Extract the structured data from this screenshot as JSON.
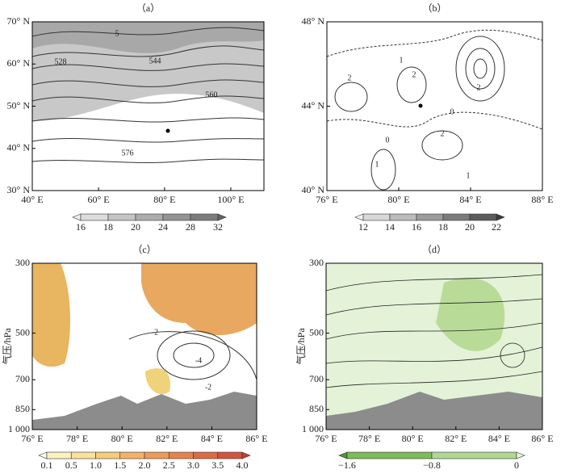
{
  "panels": [
    {
      "label": "（a）",
      "xticks": [
        "40° E",
        "60° E",
        "80° E",
        "100° E"
      ],
      "yticks": [
        "70° N",
        "60° N",
        "50° N",
        "40° N",
        "30° N"
      ],
      "colorbar": [
        "16",
        "18",
        "20",
        "24",
        "28",
        "32"
      ],
      "contour_labels": [
        "5",
        "528",
        "544",
        "560",
        "576"
      ]
    },
    {
      "label": "（b）",
      "xticks": [
        "76° E",
        "80° E",
        "84° E",
        "88° E"
      ],
      "yticks": [
        "48° N",
        "44° N",
        "40° N"
      ],
      "colorbar": [
        "12",
        "14",
        "16",
        "18",
        "20",
        "22"
      ],
      "contour_labels": [
        "1",
        "2",
        "2",
        "2",
        "0",
        "2",
        "0",
        "1",
        "1"
      ]
    },
    {
      "label": "（c）",
      "ylabel": "气压/hPa",
      "xticks": [
        "76° E",
        "78° E",
        "80° E",
        "82° E",
        "84° E",
        "86° E"
      ],
      "yticks": [
        "300",
        "500",
        "700",
        "850",
        "1 000"
      ],
      "colorbar": [
        "0.1",
        "0.5",
        "1.0",
        "1.5",
        "2.0",
        "2.5",
        "3.0",
        "3.5",
        "4.0"
      ],
      "contour_labels": [
        "-2",
        "-4",
        "-2"
      ]
    },
    {
      "label": "（d）",
      "ylabel": "气压/hPa",
      "xticks": [
        "76° E",
        "78° E",
        "80° E",
        "82° E",
        "84° E",
        "86° E"
      ],
      "yticks": [
        "300",
        "500",
        "700",
        "850",
        "1 000"
      ],
      "colorbar": [
        "−1.6",
        "−0.8",
        "0"
      ]
    }
  ]
}
